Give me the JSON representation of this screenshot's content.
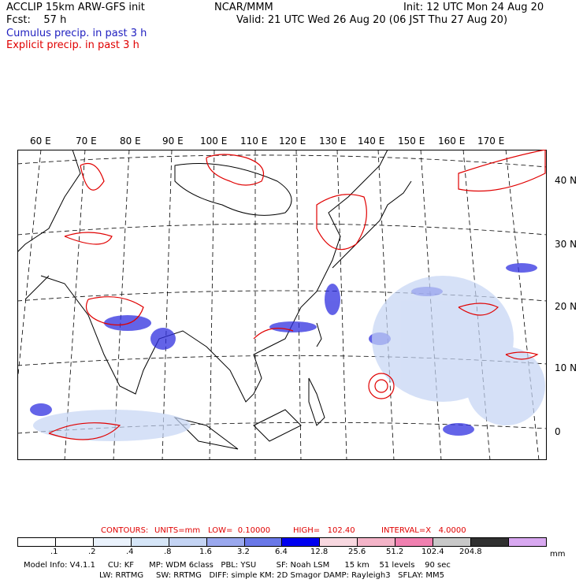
{
  "header": {
    "model_title": "ACCLIP 15km ARW-GFS init",
    "fcst": "Fcst:    57 h",
    "center": "NCAR/MMM",
    "init": "Init: 12 UTC Mon 24 Aug 20",
    "valid": "Valid: 21 UTC Wed 26 Aug 20 (06 JST Thu 27 Aug 20)",
    "cumulus_label": "Cumulus precip. in past 3 h",
    "explicit_label": "Explicit precip. in past 3 h"
  },
  "map": {
    "lon_labels": [
      "60 E",
      "70 E",
      "80 E",
      "90 E",
      "100 E",
      "110 E",
      "120 E",
      "130 E",
      "140 E",
      "150 E",
      "160 E",
      "170 E"
    ],
    "lat_labels": [
      "40 N",
      "30 N",
      "20 N",
      "10 N",
      "0"
    ],
    "colors": {
      "cumulus": "#3030e0",
      "explicit": "#e00000",
      "coast": "#000000",
      "grid": "#000000"
    }
  },
  "contours": {
    "label": "CONTOURS:",
    "units": "UNITS=mm",
    "low": "LOW=  0.10000",
    "high": "HIGH=   102.40",
    "interval": "INTERVAL=X   4.0000"
  },
  "legend": {
    "unit": "mm",
    "ticks": [
      ".1",
      ".2",
      ".4",
      ".8",
      "1.6",
      "3.2",
      "6.4",
      "12.8",
      "25.6",
      "51.2",
      "102.4",
      "204.8"
    ],
    "colors": [
      "#ffffff",
      "#ffffff",
      "#eaf2fc",
      "#d6e6f8",
      "#c4d4f4",
      "#9aa8ee",
      "#6a78e8",
      "#0000f0",
      "#f8d8e0",
      "#f4b4c8",
      "#f080b0",
      "#c8c8c8",
      "#303030",
      "#d8a8f0"
    ]
  },
  "model_info": {
    "line1": "Model Info: V4.1.1     CU: KF      MP: WDM 6class   PBL: YSU        SF: Noah LSM      15 km    51 levels    90 sec",
    "line2": "LW: RRTMG     SW: RRTMG   DIFF: simple KM: 2D Smagor DAMP: Rayleigh3   SFLAY: MM5"
  }
}
